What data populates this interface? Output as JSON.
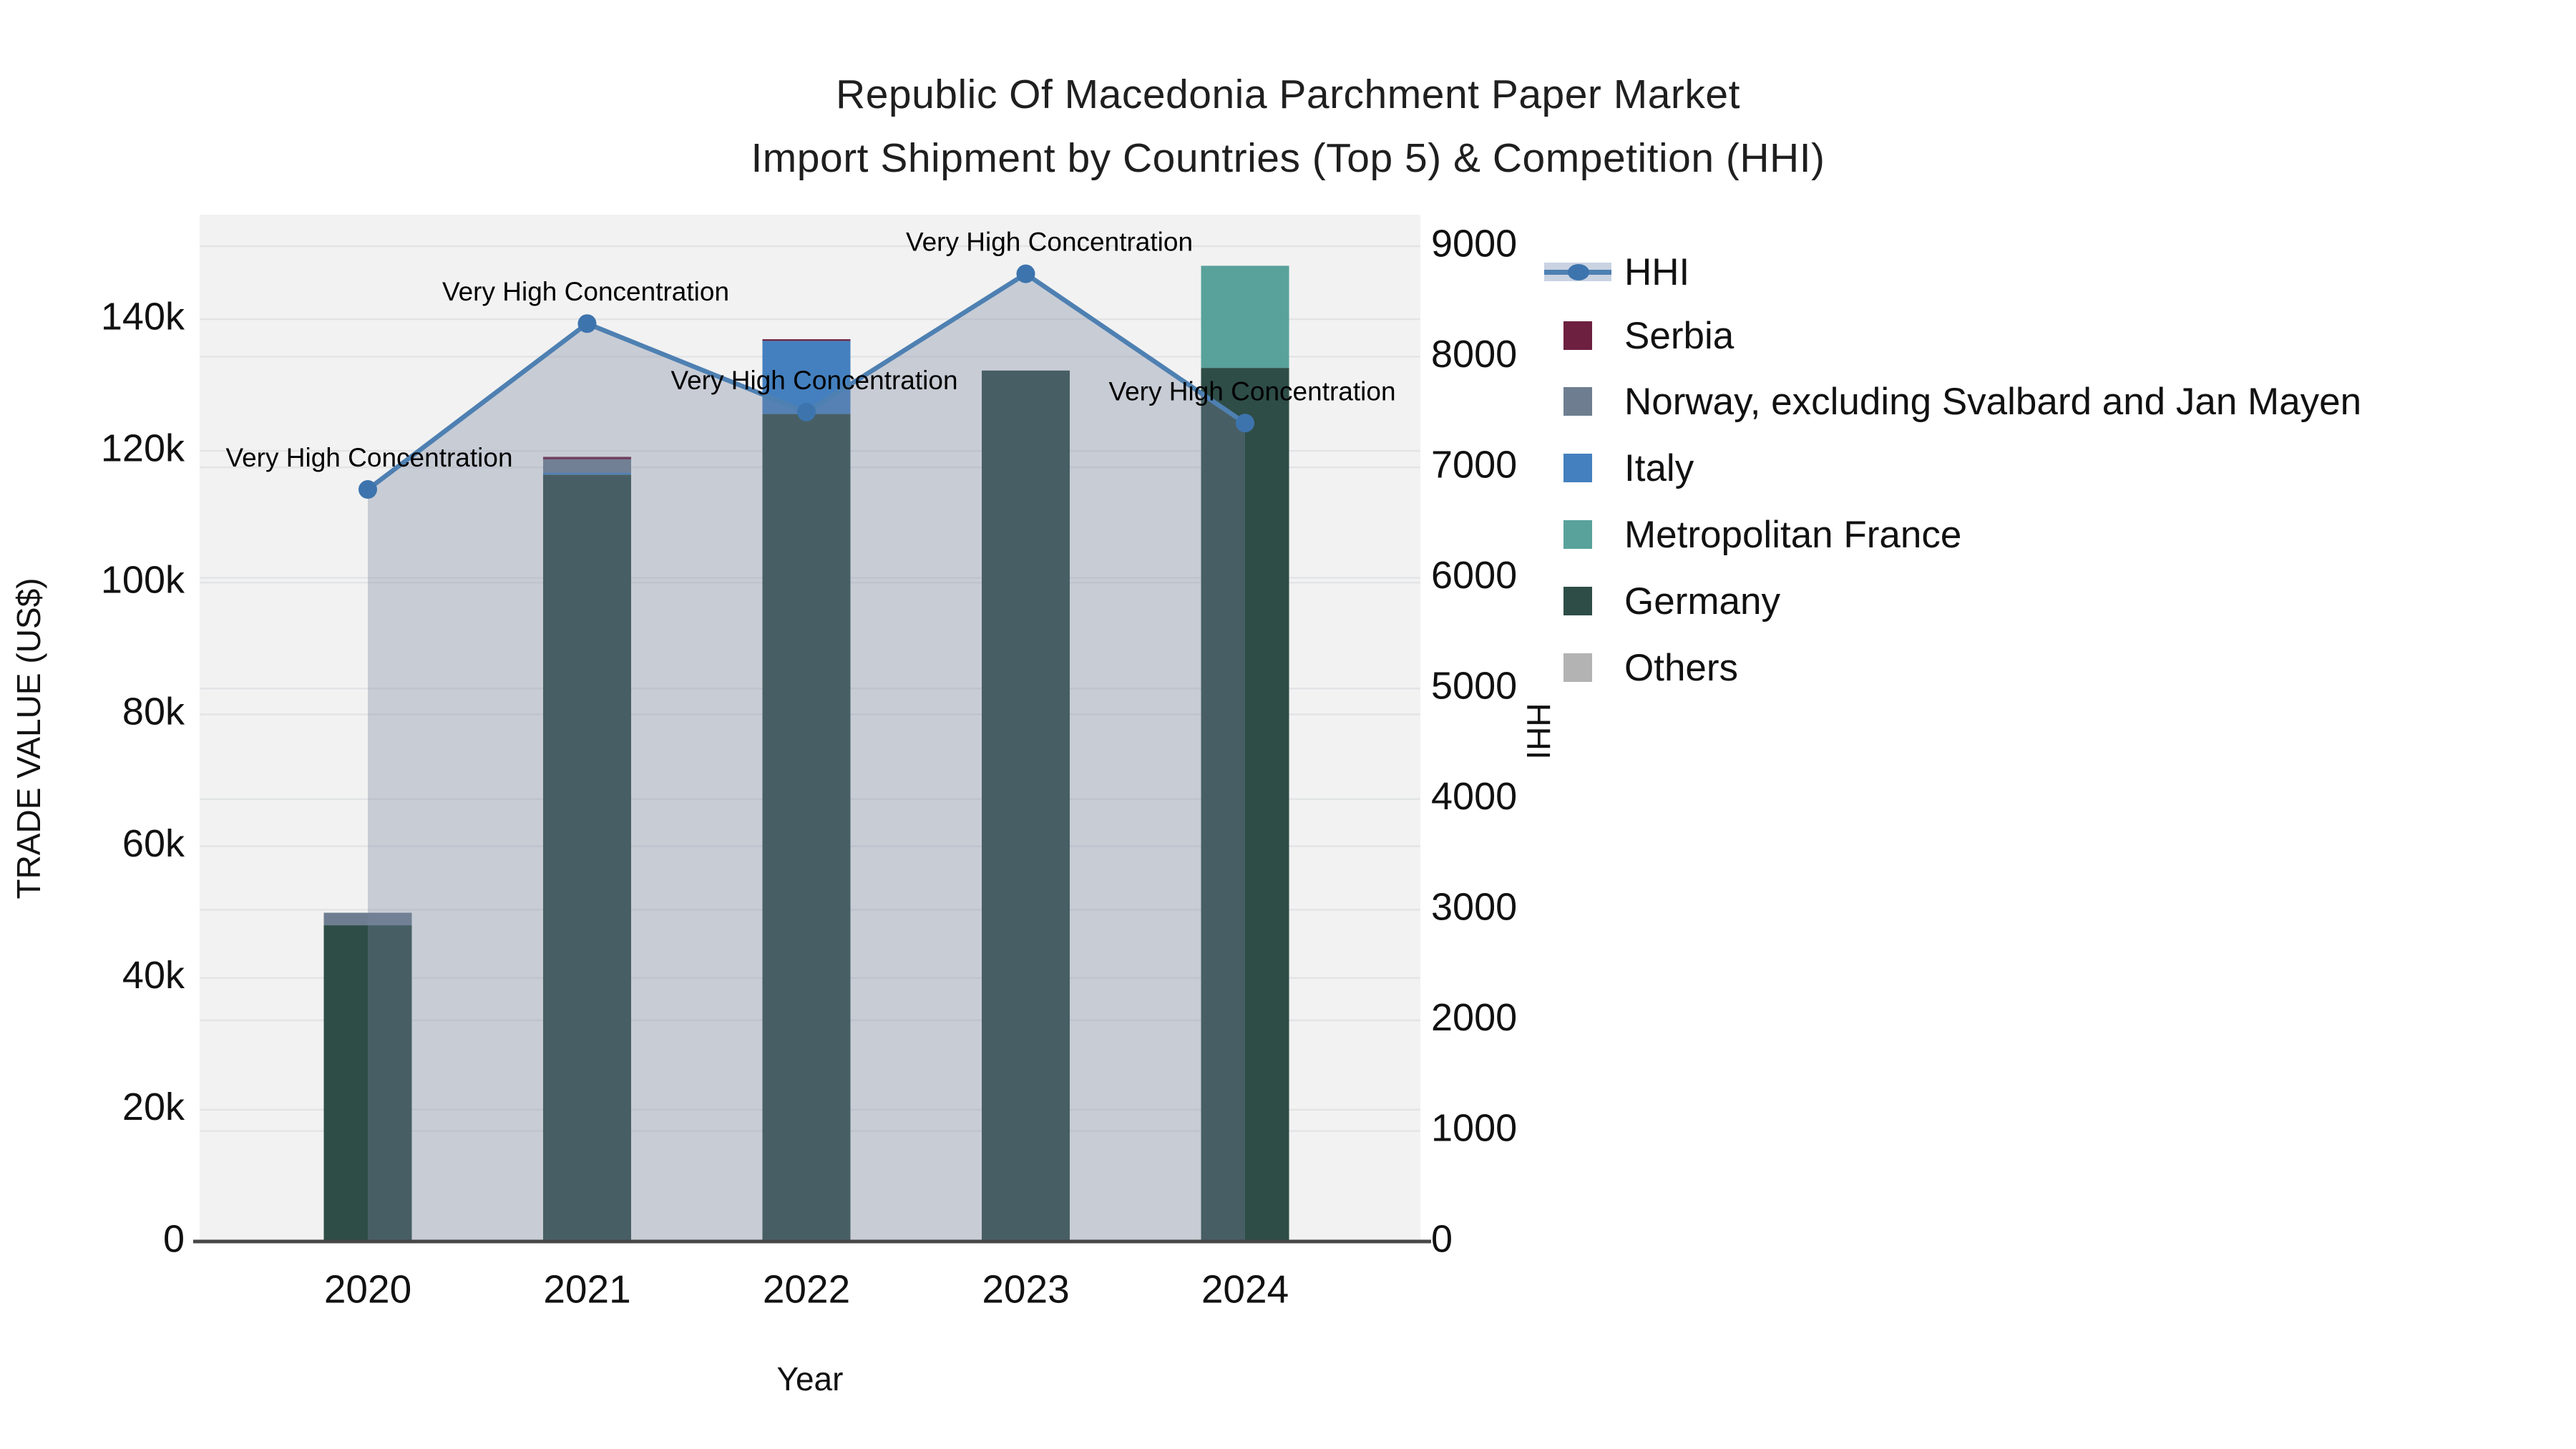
{
  "title": {
    "line1": "Republic Of Macedonia Parchment Paper Market",
    "line2": "Import Shipment by Countries (Top 5) & Competition (HHI)"
  },
  "axes": {
    "left": {
      "title": "TRADE VALUE (US$)",
      "tick_labels": [
        "0",
        "20k",
        "40k",
        "60k",
        "80k",
        "100k",
        "120k",
        "140k"
      ]
    },
    "right": {
      "title": "HHI",
      "tick_labels": [
        "0",
        "1000",
        "2000",
        "3000",
        "4000",
        "5000",
        "6000",
        "7000",
        "8000",
        "9000"
      ]
    },
    "x": {
      "title": "Year",
      "tick_labels": [
        "2020",
        "2021",
        "2022",
        "2023",
        "2024"
      ]
    }
  },
  "annotations": {
    "label": "Very High Concentration"
  },
  "legend": {
    "items": [
      {
        "id": "hhi",
        "label": "HHI",
        "type": "line",
        "color": "#4e80b2"
      },
      {
        "id": "serbia",
        "label": "Serbia",
        "type": "swatch",
        "color": "#6d2040"
      },
      {
        "id": "norway",
        "label": "Norway, excluding Svalbard and Jan Mayen",
        "type": "swatch",
        "color": "#6e7e90"
      },
      {
        "id": "italy",
        "label": "Italy",
        "type": "swatch",
        "color": "#4480bf"
      },
      {
        "id": "france",
        "label": "Metropolitan France",
        "type": "swatch",
        "color": "#58a29b"
      },
      {
        "id": "germany",
        "label": "Germany",
        "type": "swatch",
        "color": "#2e4d47"
      },
      {
        "id": "others",
        "label": "Others",
        "type": "swatch",
        "color": "#b3b3b3"
      }
    ]
  },
  "colors": {
    "plot_background": "#f2f2f2",
    "gridline": "#e3e4e6",
    "axis_line": "#474747",
    "hhi_line": "#4e80b2",
    "hhi_marker": "#3d74ad",
    "hhi_area_fill": "rgba(120,133,158,0.34)",
    "tick_text": "#111111",
    "annotation_text": "#000000"
  },
  "chart_data": {
    "type": "bar+line",
    "title": "Republic Of Macedonia Parchment Paper Market — Import Shipment by Countries (Top 5) & Competition (HHI)",
    "categories": [
      "2020",
      "2021",
      "2022",
      "2023",
      "2024"
    ],
    "xlabel": "Year",
    "ylabel_left": "TRADE VALUE (US$)",
    "ylabel_right": "HHI",
    "bar_mode": "stacked",
    "stack_order_bottom_to_top": [
      "Germany",
      "Metropolitan France",
      "Italy",
      "Norway, excluding Svalbard and Jan Mayen",
      "Serbia",
      "Others"
    ],
    "series": [
      {
        "name": "Serbia",
        "type": "bar",
        "axis": "left",
        "color": "#6d2040",
        "values": [
          0,
          400,
          250,
          0,
          0
        ]
      },
      {
        "name": "Norway, excluding Svalbard and Jan Mayen",
        "type": "bar",
        "axis": "left",
        "color": "#6e7e90",
        "values": [
          1900,
          2000,
          0,
          0,
          0
        ]
      },
      {
        "name": "Italy",
        "type": "bar",
        "axis": "left",
        "color": "#4480bf",
        "values": [
          0,
          300,
          11100,
          0,
          0
        ]
      },
      {
        "name": "Metropolitan France",
        "type": "bar",
        "axis": "left",
        "color": "#58a29b",
        "values": [
          0,
          0,
          0,
          0,
          15500
        ]
      },
      {
        "name": "Germany",
        "type": "bar",
        "axis": "left",
        "color": "#2e4d47",
        "values": [
          48000,
          116400,
          125600,
          132200,
          132600
        ]
      },
      {
        "name": "Others",
        "type": "bar",
        "axis": "left",
        "color": "#b3b3b3",
        "values": [
          0,
          0,
          0,
          0,
          0
        ]
      }
    ],
    "bar_totals": [
      49900,
      119100,
      136950,
      132200,
      148100
    ],
    "line_series": {
      "name": "HHI",
      "type": "line",
      "axis": "right",
      "color": "#4e80b2",
      "values": [
        6800,
        8300,
        7500,
        8750,
        7400
      ],
      "point_annotations": [
        "Very High Concentration",
        "Very High Concentration",
        "Very High Concentration",
        "Very High Concentration",
        "Very High Concentration"
      ],
      "area_fill": true
    },
    "left_axis": {
      "range": [
        0,
        155900
      ],
      "ticks": [
        0,
        20000,
        40000,
        60000,
        80000,
        100000,
        120000,
        140000
      ]
    },
    "right_axis": {
      "range": [
        0,
        9285
      ],
      "ticks": [
        0,
        1000,
        2000,
        3000,
        4000,
        5000,
        6000,
        7000,
        8000,
        9000
      ]
    },
    "grid": true,
    "legend_position": "right"
  }
}
